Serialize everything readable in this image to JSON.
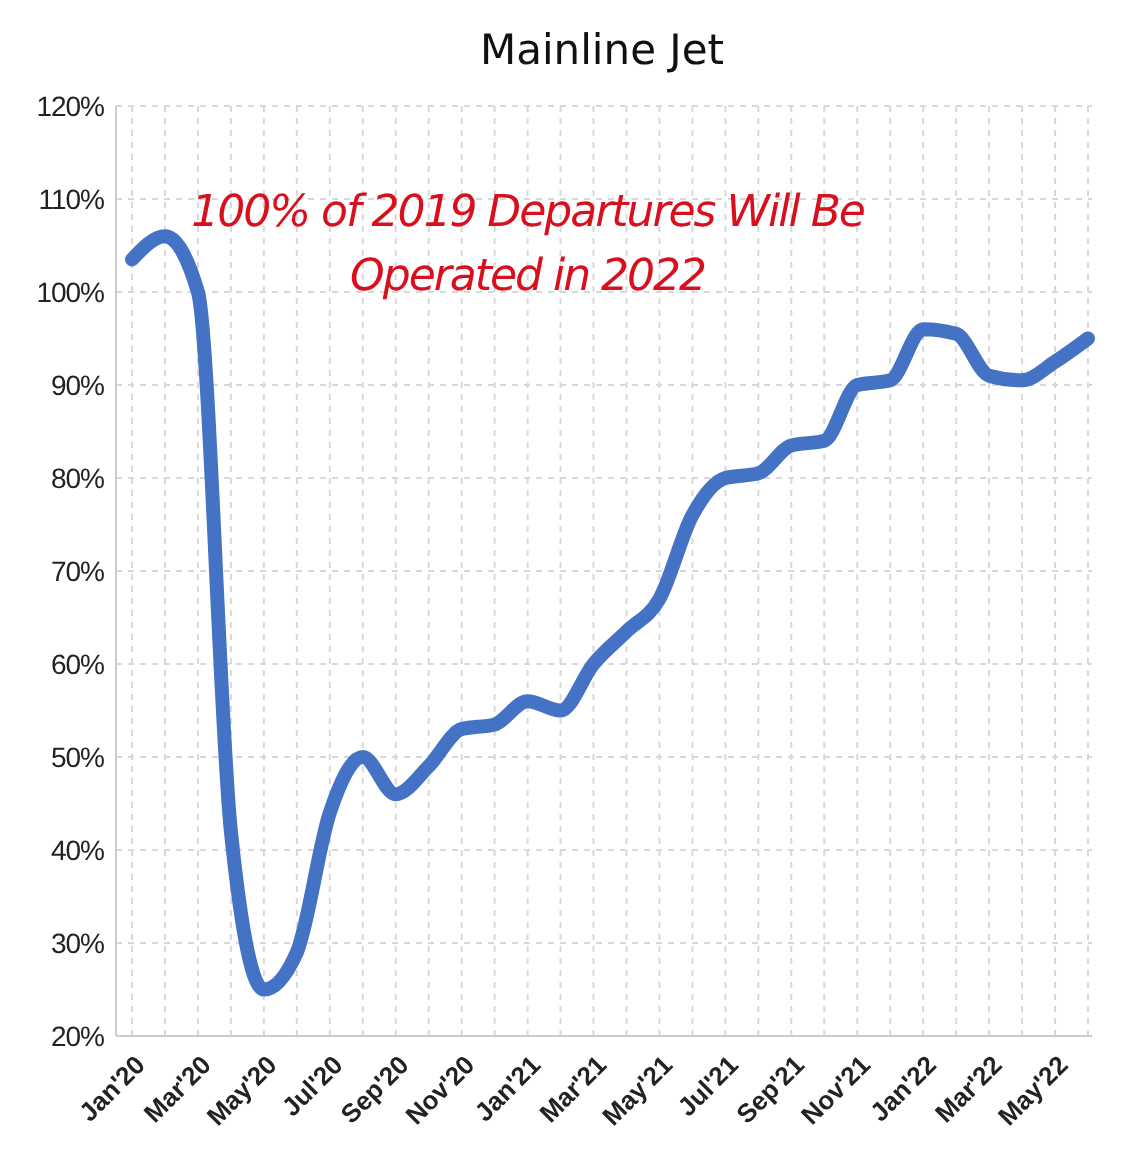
{
  "chart_data": {
    "type": "line",
    "title": "Mainline Jet",
    "annotations": [
      "100% of 2019 Departures Will Be Operated in 2022"
    ],
    "categories": [
      "Jan'20",
      null,
      "Mar'20",
      null,
      "May'20",
      null,
      "Jul'20",
      null,
      "Sep'20",
      null,
      "Nov'20",
      null,
      "Jan'21",
      null,
      "Mar'21",
      null,
      "May'21",
      null,
      "Jul'21",
      null,
      "Sep'21",
      null,
      "Nov'21",
      null,
      "Jan'22",
      null,
      "Mar'22",
      null,
      "May'22",
      null
    ],
    "series": [
      {
        "color": "#4472c4",
        "values": [
          103.5,
          106,
          100,
          42,
          25,
          29,
          44,
          50,
          46,
          49,
          53,
          53.5,
          56,
          55,
          60,
          63.5,
          67,
          76,
          80,
          80.5,
          83.5,
          84,
          90,
          90.5,
          96,
          95.5,
          91,
          90.5,
          92.5,
          95
        ]
      }
    ],
    "ylim": [
      20,
      120
    ],
    "yticks": [
      {
        "value": 20,
        "label": "20%"
      },
      {
        "value": 30,
        "label": "30%"
      },
      {
        "value": 40,
        "label": "40%"
      },
      {
        "value": 50,
        "label": "50%"
      },
      {
        "value": 60,
        "label": "60%"
      },
      {
        "value": 70,
        "label": "70%"
      },
      {
        "value": 80,
        "label": "80%"
      },
      {
        "value": 90,
        "label": "90%"
      },
      {
        "value": 100,
        "label": "100%"
      },
      {
        "value": 110,
        "label": "110%"
      },
      {
        "value": 120,
        "label": "120%"
      }
    ],
    "grid": true,
    "marker": "none",
    "line_style": "solid"
  }
}
